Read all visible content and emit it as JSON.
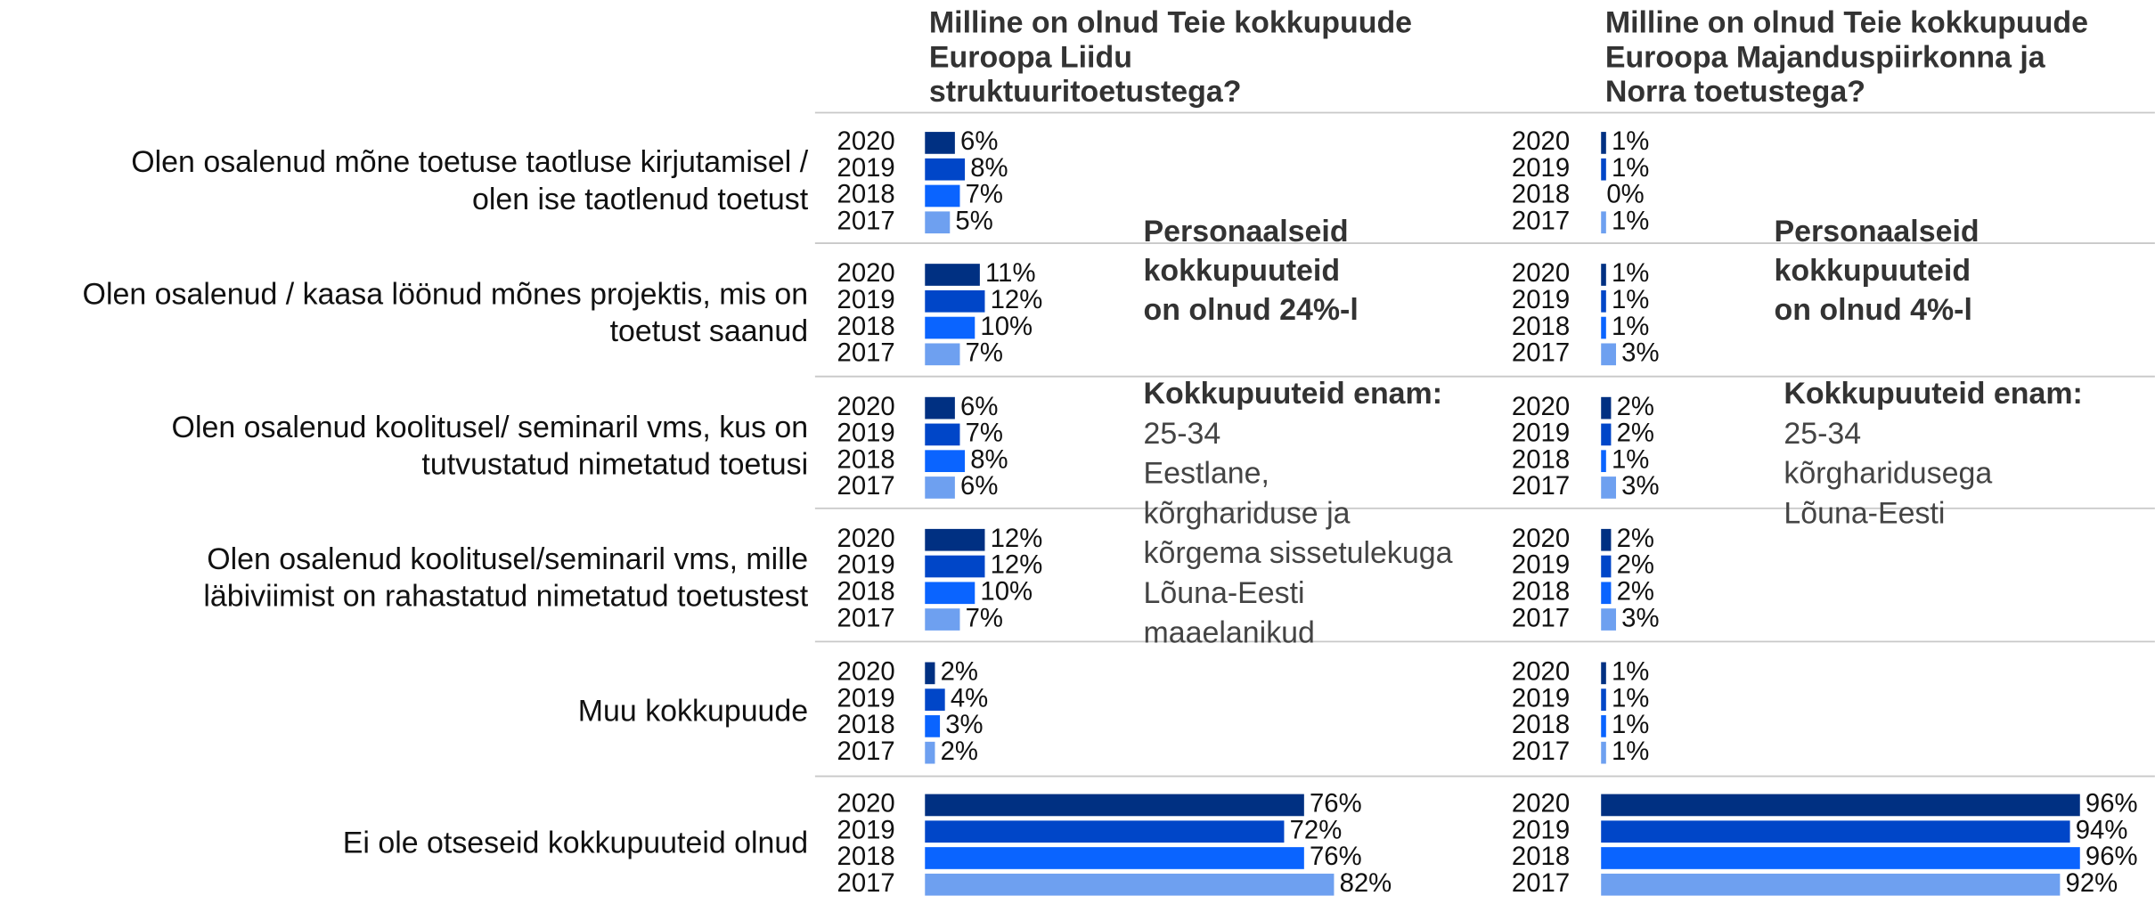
{
  "chart_data": {
    "type": "bar",
    "orientation": "horizontal",
    "categories": [
      [
        "Olen osalenud mõne toetuse taotluse kirjutamisel /",
        "olen ise taotlenud toetust"
      ],
      [
        "Olen osalenud / kaasa löönud mõnes projektis, mis on",
        "toetust saanud"
      ],
      [
        "Olen osalenud koolitusel/ seminaril vms, kus on",
        "tutvustatud nimetatud toetusi"
      ],
      [
        "Olen osalenud koolitusel/seminaril vms, mille",
        "läbiviimist on rahastatud nimetatud toetustest"
      ],
      [
        "Muu kokkupuude"
      ],
      [
        "Ei ole otseseid kokkupuuteid olnud"
      ]
    ],
    "panels": [
      {
        "title": [
          "Milline on olnud Teie kokkupuude",
          "Euroopa Liidu",
          "struktuuritoetustega?"
        ],
        "annotation_bold": [
          "Personaalseid",
          "kokkupuuteid",
          "on olnud 24%-l"
        ],
        "annotation_heading": "Kokkupuuteid enam:",
        "annotation_lines": [
          "25-34",
          "Eestlane,",
          "kõrghariduse ja",
          "kõrgema sissetulekuga",
          "Lõuna-Eesti",
          "maaelanikud"
        ],
        "series": [
          {
            "name": "2020",
            "color": "#003082",
            "values": [
              6,
              11,
              6,
              12,
              2,
              76
            ],
            "value_labels": [
              "6%",
              "11%",
              "6%",
              "12%",
              "2%",
              "76%"
            ]
          },
          {
            "name": "2019",
            "color": "#0046c8",
            "values": [
              8,
              12,
              7,
              12,
              4,
              72
            ],
            "value_labels": [
              "8%",
              "12%",
              "7%",
              "12%",
              "4%",
              "72%"
            ]
          },
          {
            "name": "2018",
            "color": "#0a64ff",
            "values": [
              7,
              10,
              8,
              10,
              3,
              76
            ],
            "value_labels": [
              "7%",
              "10%",
              "8%",
              "10%",
              "3%",
              "76%"
            ]
          },
          {
            "name": "2017",
            "color": "#6ea0f0",
            "values": [
              5,
              7,
              6,
              7,
              2,
              82
            ],
            "value_labels": [
              "5%",
              "7%",
              "6%",
              "7%",
              "2%",
              "82%"
            ]
          }
        ]
      },
      {
        "title": [
          "Milline on olnud Teie kokkupuude",
          "Euroopa Majanduspiirkonna ja",
          "Norra toetustega?"
        ],
        "annotation_bold": [
          "Personaalseid",
          "kokkupuuteid",
          "on olnud 4%-l"
        ],
        "annotation_heading": "Kokkupuuteid enam:",
        "annotation_lines": [
          "25-34",
          "kõrgharidusega",
          "Lõuna-Eesti"
        ],
        "series": [
          {
            "name": "2020",
            "color": "#003082",
            "values": [
              1,
              1,
              2,
              2,
              1,
              96
            ],
            "value_labels": [
              "1%",
              "1%",
              "2%",
              "2%",
              "1%",
              "96%"
            ]
          },
          {
            "name": "2019",
            "color": "#0046c8",
            "values": [
              1,
              1,
              2,
              2,
              1,
              94
            ],
            "value_labels": [
              "1%",
              "1%",
              "2%",
              "2%",
              "1%",
              "94%"
            ]
          },
          {
            "name": "2018",
            "color": "#0a64ff",
            "values": [
              0,
              1,
              1,
              2,
              1,
              96
            ],
            "value_labels": [
              "0%",
              "1%",
              "1%",
              "2%",
              "1%",
              "96%"
            ]
          },
          {
            "name": "2017",
            "color": "#6ea0f0",
            "values": [
              1,
              3,
              3,
              3,
              1,
              92
            ],
            "value_labels": [
              "1%",
              "3%",
              "3%",
              "3%",
              "1%",
              "92%"
            ]
          }
        ]
      }
    ]
  }
}
